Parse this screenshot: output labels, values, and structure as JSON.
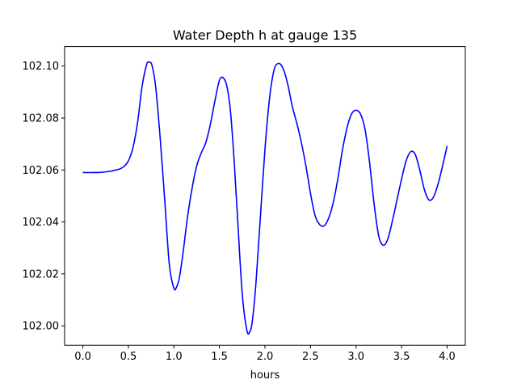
{
  "chart_data": {
    "type": "line",
    "title": "Water Depth h at gauge 135",
    "xlabel": "hours",
    "ylabel": "",
    "xlim": [
      -0.2,
      4.2
    ],
    "ylim": [
      101.9925,
      102.1075
    ],
    "xticks": [
      0.0,
      0.5,
      1.0,
      1.5,
      2.0,
      2.5,
      3.0,
      3.5,
      4.0
    ],
    "xtick_labels": [
      "0.0",
      "0.5",
      "1.0",
      "1.5",
      "2.0",
      "2.5",
      "3.0",
      "3.5",
      "4.0"
    ],
    "yticks": [
      102.0,
      102.02,
      102.04,
      102.06,
      102.08,
      102.1
    ],
    "ytick_labels": [
      "102.00",
      "102.02",
      "102.04",
      "102.06",
      "102.08",
      "102.10"
    ],
    "grid": false,
    "series": [
      {
        "color": "#0000ff",
        "x": [
          0.0,
          0.1,
          0.2,
          0.3,
          0.4,
          0.45,
          0.5,
          0.55,
          0.6,
          0.65,
          0.7,
          0.73,
          0.76,
          0.8,
          0.85,
          0.9,
          0.95,
          1.0,
          1.03,
          1.06,
          1.1,
          1.15,
          1.2,
          1.25,
          1.3,
          1.35,
          1.4,
          1.45,
          1.5,
          1.54,
          1.58,
          1.62,
          1.66,
          1.7,
          1.75,
          1.8,
          1.83,
          1.86,
          1.9,
          1.95,
          2.0,
          2.05,
          2.1,
          2.15,
          2.2,
          2.25,
          2.3,
          2.35,
          2.4,
          2.45,
          2.5,
          2.55,
          2.6,
          2.65,
          2.7,
          2.75,
          2.8,
          2.85,
          2.9,
          2.95,
          3.0,
          3.05,
          3.1,
          3.15,
          3.2,
          3.25,
          3.3,
          3.35,
          3.4,
          3.45,
          3.5,
          3.55,
          3.6,
          3.65,
          3.7,
          3.75,
          3.8,
          3.85,
          3.9,
          3.95,
          4.0
        ],
        "y": [
          102.059,
          102.059,
          102.0591,
          102.0595,
          102.0603,
          102.0613,
          102.0635,
          102.0685,
          102.078,
          102.092,
          102.1005,
          102.1015,
          102.1002,
          102.092,
          102.072,
          102.048,
          102.0235,
          102.0145,
          102.015,
          102.0185,
          102.028,
          102.042,
          102.053,
          102.0615,
          102.0665,
          102.0705,
          102.0775,
          102.0865,
          102.0945,
          102.0955,
          102.0925,
          102.083,
          102.0645,
          102.041,
          102.0125,
          101.9985,
          101.9975,
          102.0015,
          102.016,
          102.042,
          102.068,
          102.0875,
          102.0985,
          102.101,
          102.099,
          102.093,
          102.0845,
          102.078,
          102.0705,
          102.0615,
          102.051,
          102.0425,
          102.039,
          102.0385,
          102.0415,
          102.0475,
          102.0565,
          102.0675,
          102.076,
          102.0815,
          102.083,
          102.0815,
          102.0755,
          102.0625,
          102.0465,
          102.0345,
          102.031,
          102.0335,
          102.0405,
          102.0485,
          102.0565,
          102.0635,
          102.067,
          102.066,
          102.06,
          102.0525,
          102.0485,
          102.0495,
          102.0545,
          102.0615,
          102.0692
        ]
      }
    ]
  }
}
